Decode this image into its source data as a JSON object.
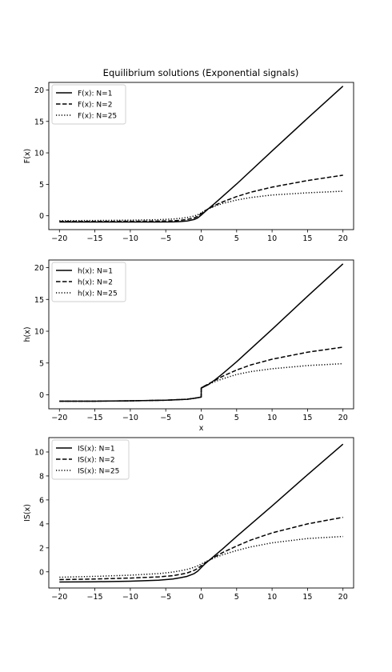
{
  "figure": {
    "title": "Equilibrium solutions (Exponential signals)"
  },
  "chart_data": [
    {
      "type": "line",
      "title": "Equilibrium solutions (Exponential signals)",
      "xlabel": "",
      "ylabel": "F(x)",
      "xlim": [
        -21.5,
        21.5
      ],
      "ylim": [
        -2.2,
        21.2
      ],
      "xticks": [
        -20,
        -15,
        -10,
        -5,
        0,
        5,
        10,
        15,
        20
      ],
      "xtick_labels": [
        "−20",
        "−15",
        "−10",
        "−5",
        "0",
        "5",
        "10",
        "15",
        "20"
      ],
      "yticks": [
        0,
        5,
        10,
        15,
        20
      ],
      "ytick_labels": [
        "0",
        "5",
        "10",
        "15",
        "20"
      ],
      "grid": false,
      "legend_position": "top-left",
      "series": [
        {
          "name": "F(x): N=1",
          "style": "solid",
          "x": [
            -20,
            -15,
            -10,
            -6,
            -4,
            -3,
            -2,
            -1,
            -0.5,
            0,
            0.5,
            1,
            2,
            3,
            5,
            10,
            15,
            20
          ],
          "y": [
            -1.0,
            -1.0,
            -1.0,
            -0.99,
            -0.97,
            -0.93,
            -0.84,
            -0.6,
            -0.35,
            0.1,
            0.6,
            1.1,
            2.05,
            3.05,
            5.05,
            10.3,
            15.5,
            20.6
          ]
        },
        {
          "name": "F(x): N=2",
          "style": "dashed",
          "x": [
            -20,
            -15,
            -10,
            -6,
            -4,
            -3,
            -2,
            -1,
            -0.5,
            0,
            0.5,
            1,
            2,
            3,
            5,
            7,
            10,
            15,
            20
          ],
          "y": [
            -0.9,
            -0.9,
            -0.88,
            -0.85,
            -0.8,
            -0.72,
            -0.6,
            -0.35,
            -0.1,
            0.35,
            0.75,
            1.1,
            1.7,
            2.2,
            3.05,
            3.75,
            4.55,
            5.6,
            6.45
          ]
        },
        {
          "name": "F(x): N=25",
          "style": "dotted",
          "x": [
            -20,
            -15,
            -10,
            -6,
            -4,
            -3,
            -2,
            -1,
            -0.5,
            0,
            0.5,
            1,
            2,
            3,
            5,
            7,
            10,
            15,
            20
          ],
          "y": [
            -0.78,
            -0.75,
            -0.7,
            -0.62,
            -0.52,
            -0.42,
            -0.28,
            -0.05,
            0.15,
            0.45,
            0.8,
            1.1,
            1.55,
            1.95,
            2.5,
            2.9,
            3.3,
            3.65,
            3.9
          ]
        }
      ]
    },
    {
      "type": "line",
      "title": "",
      "xlabel": "x",
      "ylabel": "h(x)",
      "xlim": [
        -21.5,
        21.5
      ],
      "ylim": [
        -2.2,
        21.2
      ],
      "xticks": [
        -20,
        -15,
        -10,
        -5,
        0,
        5,
        10,
        15,
        20
      ],
      "xtick_labels": [
        "−20",
        "−15",
        "−10",
        "−5",
        "0",
        "5",
        "10",
        "15",
        "20"
      ],
      "yticks": [
        0,
        5,
        10,
        15,
        20
      ],
      "ytick_labels": [
        "0",
        "5",
        "10",
        "15",
        "20"
      ],
      "grid": false,
      "legend_position": "top-left",
      "series": [
        {
          "name": "h(x): N=1",
          "style": "solid",
          "x": [
            -20,
            -15,
            -10,
            -5,
            -2,
            -1,
            -0.3,
            0,
            0.01,
            1,
            2,
            3,
            5,
            10,
            15,
            20
          ],
          "y": [
            -1.0,
            -1.0,
            -0.95,
            -0.85,
            -0.7,
            -0.55,
            -0.42,
            -0.35,
            1.05,
            1.6,
            2.4,
            3.3,
            5.2,
            10.3,
            15.5,
            20.6
          ]
        },
        {
          "name": "h(x): N=2",
          "style": "dashed",
          "x": [
            -20,
            -15,
            -10,
            -5,
            -2,
            -1,
            -0.3,
            0,
            0.01,
            1,
            2,
            3,
            5,
            7,
            10,
            15,
            20
          ],
          "y": [
            -1.0,
            -1.0,
            -0.95,
            -0.85,
            -0.7,
            -0.55,
            -0.42,
            -0.35,
            1.1,
            1.7,
            2.3,
            2.9,
            3.9,
            4.7,
            5.6,
            6.7,
            7.5
          ]
        },
        {
          "name": "h(x): N=25",
          "style": "dotted",
          "x": [
            -20,
            -15,
            -10,
            -5,
            -2,
            -1,
            -0.3,
            0,
            0.01,
            1,
            2,
            3,
            5,
            7,
            10,
            15,
            20
          ],
          "y": [
            -1.0,
            -1.0,
            -0.95,
            -0.85,
            -0.7,
            -0.55,
            -0.42,
            -0.35,
            1.15,
            1.65,
            2.1,
            2.5,
            3.2,
            3.65,
            4.1,
            4.6,
            4.9
          ]
        }
      ]
    },
    {
      "type": "line",
      "title": "",
      "xlabel": "",
      "ylabel": "IS(x)",
      "xlim": [
        -21.5,
        21.5
      ],
      "ylim": [
        -1.35,
        11.2
      ],
      "xticks": [
        -20,
        -15,
        -10,
        -5,
        0,
        5,
        10,
        15,
        20
      ],
      "xtick_labels": [
        "−20",
        "−15",
        "−10",
        "−5",
        "0",
        "5",
        "10",
        "15",
        "20"
      ],
      "yticks": [
        0,
        2,
        4,
        6,
        8,
        10
      ],
      "ytick_labels": [
        "0",
        "2",
        "4",
        "6",
        "8",
        "10"
      ],
      "grid": false,
      "legend_position": "top-left",
      "series": [
        {
          "name": "IS(x): N=1",
          "style": "solid",
          "x": [
            -20,
            -15,
            -10,
            -6,
            -4,
            -3,
            -2,
            -1,
            -0.5,
            0,
            0.5,
            1,
            2,
            3,
            5,
            10,
            15,
            20
          ],
          "y": [
            -0.85,
            -0.83,
            -0.78,
            -0.7,
            -0.6,
            -0.5,
            -0.38,
            -0.15,
            0.05,
            0.35,
            0.65,
            0.9,
            1.4,
            1.9,
            2.95,
            5.5,
            8.1,
            10.65
          ]
        },
        {
          "name": "IS(x): N=2",
          "style": "dashed",
          "x": [
            -20,
            -15,
            -10,
            -6,
            -4,
            -3,
            -2,
            -1,
            -0.5,
            0,
            0.5,
            1,
            2,
            3,
            5,
            7,
            10,
            15,
            20
          ],
          "y": [
            -0.65,
            -0.6,
            -0.52,
            -0.42,
            -0.32,
            -0.22,
            -0.1,
            0.12,
            0.28,
            0.5,
            0.72,
            0.92,
            1.28,
            1.6,
            2.15,
            2.65,
            3.25,
            4.0,
            4.55
          ]
        },
        {
          "name": "IS(x): N=25",
          "style": "dotted",
          "x": [
            -20,
            -15,
            -10,
            -6,
            -4,
            -3,
            -2,
            -1,
            -0.5,
            0,
            0.5,
            1,
            2,
            3,
            5,
            7,
            10,
            15,
            20
          ],
          "y": [
            -0.45,
            -0.38,
            -0.28,
            -0.15,
            -0.02,
            0.08,
            0.2,
            0.38,
            0.5,
            0.65,
            0.8,
            0.95,
            1.2,
            1.42,
            1.78,
            2.08,
            2.42,
            2.78,
            2.95
          ]
        }
      ]
    }
  ]
}
